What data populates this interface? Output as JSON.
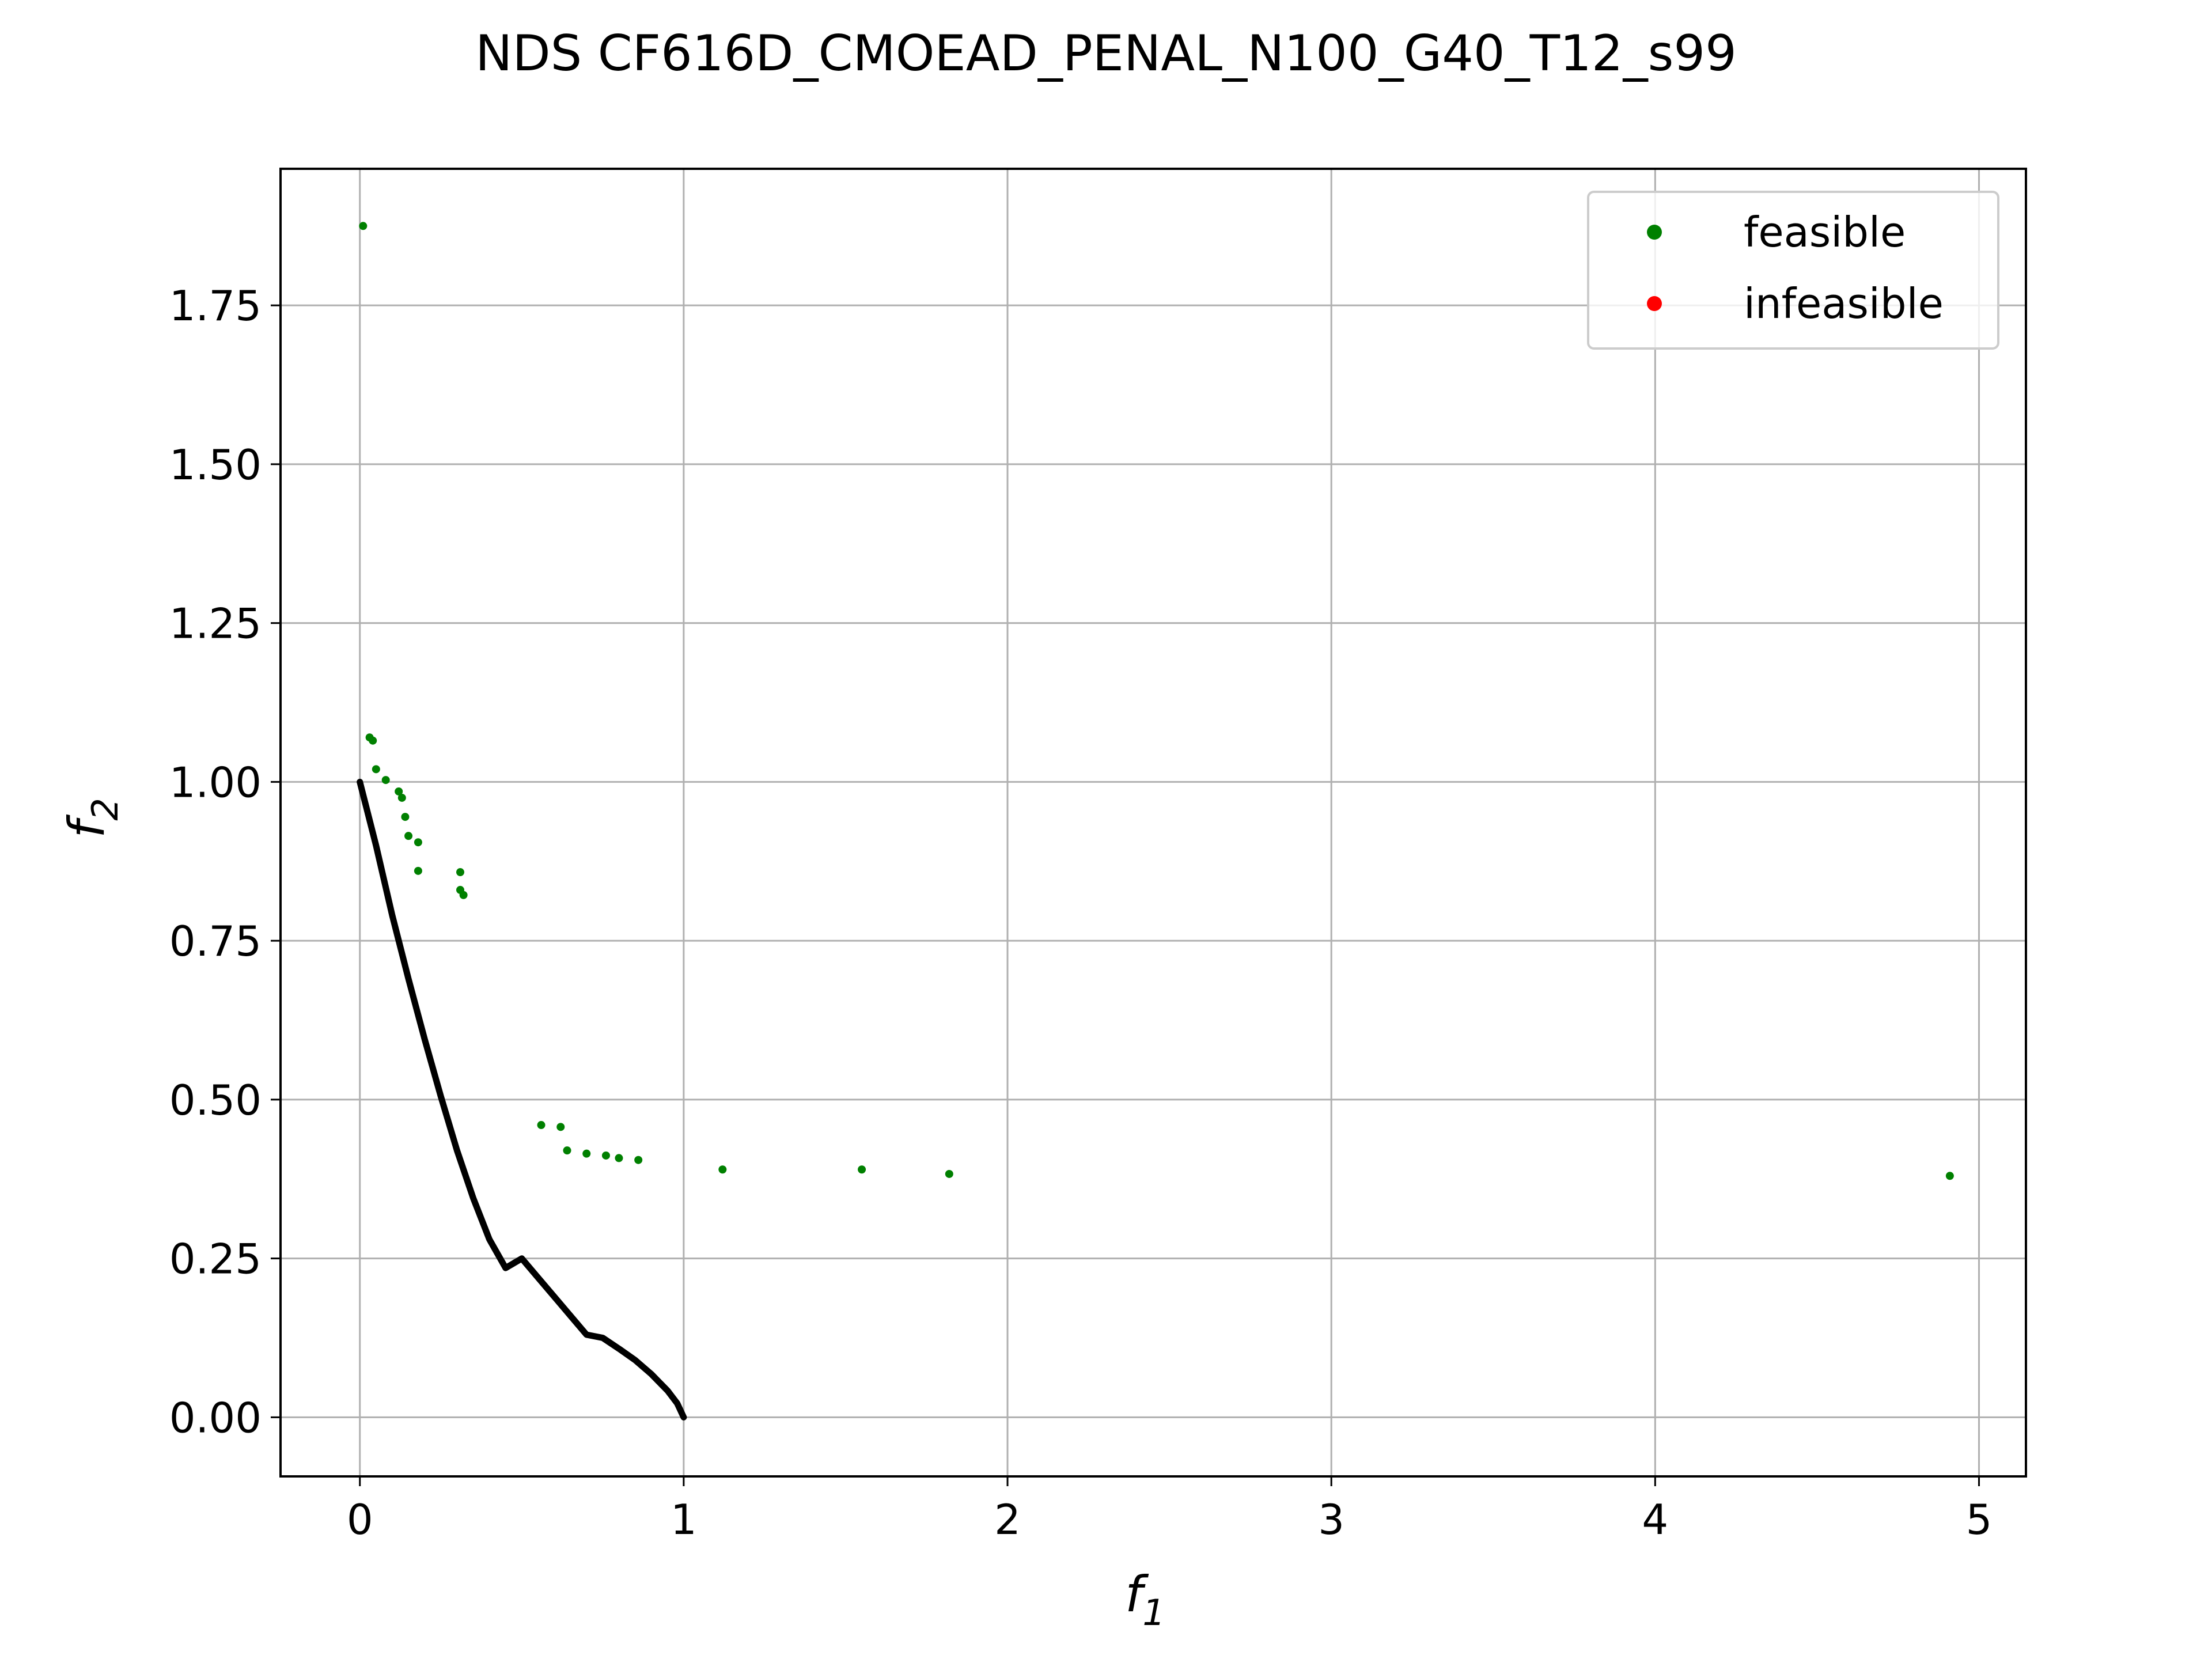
{
  "chart_data": {
    "type": "scatter",
    "title": "NDS CF616D_CMOEAD_PENAL_N100_G40_T12_s99",
    "xlabel": {
      "main": "f",
      "sub": "1"
    },
    "ylabel": {
      "main": "f",
      "sub": "2"
    },
    "xlim": [
      -0.245,
      5.145
    ],
    "ylim": [
      -0.093,
      1.965
    ],
    "xticks": [
      0,
      1,
      2,
      3,
      4,
      5
    ],
    "xtick_labels": [
      "0",
      "1",
      "2",
      "3",
      "4",
      "5"
    ],
    "yticks": [
      0.0,
      0.25,
      0.5,
      0.75,
      1.0,
      1.25,
      1.5,
      1.75
    ],
    "ytick_labels": [
      "0.00",
      "0.25",
      "0.50",
      "0.75",
      "1.00",
      "1.25",
      "1.50",
      "1.75"
    ],
    "grid": true,
    "legend": {
      "position": "top-right"
    },
    "colors": {
      "feasible": "#008000",
      "infeasible": "#ff0000",
      "front": "#000000",
      "grid": "#b0b0b0"
    },
    "series": [
      {
        "name": "feasible",
        "marker": "dot",
        "points": [
          [
            0.01,
            1.875
          ],
          [
            0.03,
            1.07
          ],
          [
            0.04,
            1.065
          ],
          [
            0.05,
            1.02
          ],
          [
            0.08,
            1.003
          ],
          [
            0.12,
            0.985
          ],
          [
            0.13,
            0.975
          ],
          [
            0.14,
            0.945
          ],
          [
            0.15,
            0.915
          ],
          [
            0.18,
            0.905
          ],
          [
            0.18,
            0.86
          ],
          [
            0.31,
            0.858
          ],
          [
            0.31,
            0.83
          ],
          [
            0.32,
            0.822
          ],
          [
            0.56,
            0.46
          ],
          [
            0.62,
            0.457
          ],
          [
            0.64,
            0.42
          ],
          [
            0.7,
            0.415
          ],
          [
            0.76,
            0.412
          ],
          [
            0.8,
            0.408
          ],
          [
            0.86,
            0.405
          ],
          [
            1.12,
            0.39
          ],
          [
            1.55,
            0.39
          ],
          [
            1.82,
            0.383
          ],
          [
            4.91,
            0.38
          ]
        ]
      },
      {
        "name": "infeasible",
        "marker": "dot",
        "points": []
      },
      {
        "name": "",
        "type": "line",
        "points": [
          [
            0.0,
            1.0
          ],
          [
            0.05,
            0.9
          ],
          [
            0.1,
            0.79
          ],
          [
            0.15,
            0.69
          ],
          [
            0.2,
            0.595
          ],
          [
            0.25,
            0.505
          ],
          [
            0.3,
            0.42
          ],
          [
            0.35,
            0.345
          ],
          [
            0.4,
            0.28
          ],
          [
            0.45,
            0.235
          ],
          [
            0.5,
            0.25
          ],
          [
            0.55,
            0.22
          ],
          [
            0.6,
            0.19
          ],
          [
            0.65,
            0.16
          ],
          [
            0.7,
            0.13
          ],
          [
            0.75,
            0.125
          ],
          [
            0.8,
            0.108
          ],
          [
            0.85,
            0.09
          ],
          [
            0.9,
            0.068
          ],
          [
            0.95,
            0.042
          ],
          [
            0.98,
            0.022
          ],
          [
            1.0,
            0.0
          ]
        ]
      }
    ]
  }
}
